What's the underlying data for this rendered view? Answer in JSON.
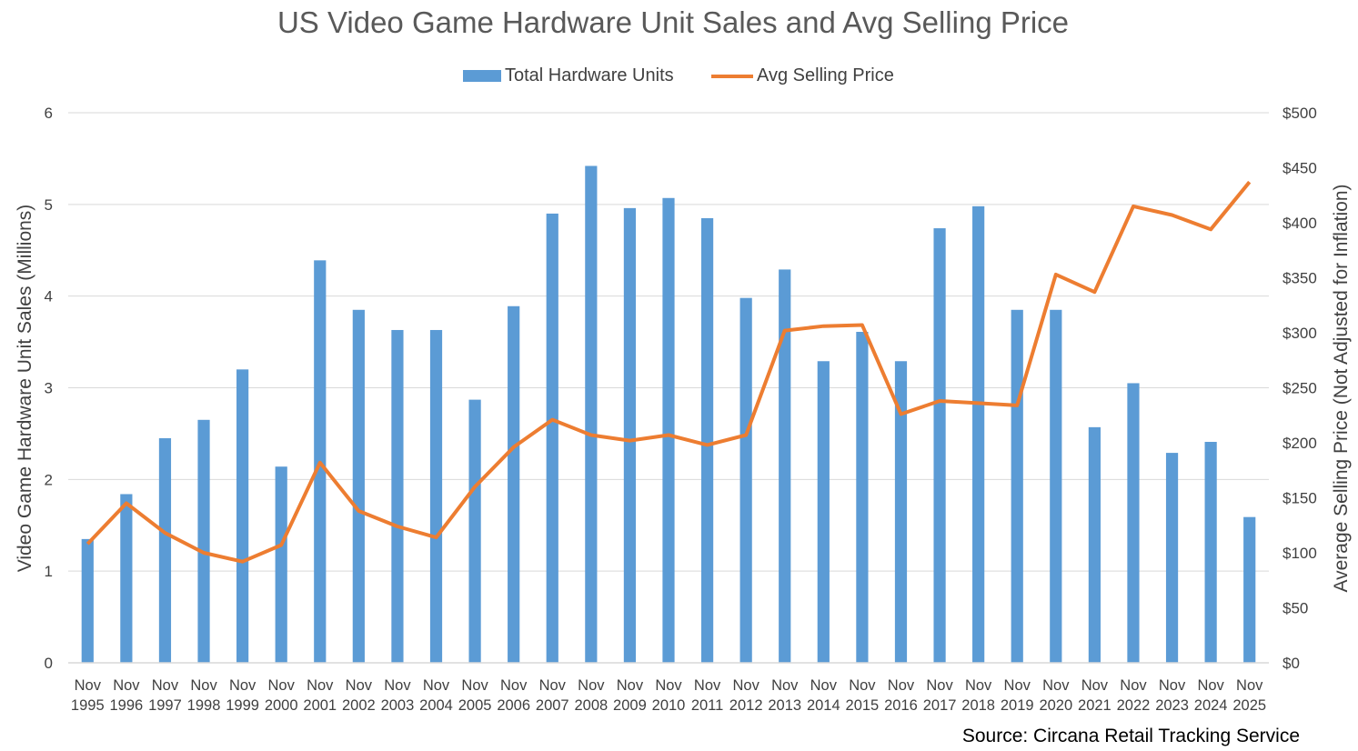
{
  "chart_data": {
    "type": "bar+line",
    "title": "US Video Game Hardware Unit Sales and Avg Selling Price",
    "ylabel": "Video Game Hardware Unit Sales (Millions)",
    "y2label": "Average Selling Price (Not Adjusted for Inflation)",
    "ylim": [
      0,
      6
    ],
    "y2lim": [
      0,
      500
    ],
    "yticks": [
      "0",
      "1",
      "2",
      "3",
      "4",
      "5",
      "6"
    ],
    "y2ticks": [
      "$0",
      "$50",
      "$100",
      "$150",
      "$200",
      "$250",
      "$300",
      "$350",
      "$400",
      "$450",
      "$500"
    ],
    "grid": true,
    "legend_position": "top-center",
    "categories": [
      "Nov 1995",
      "Nov 1996",
      "Nov 1997",
      "Nov 1998",
      "Nov 1999",
      "Nov 2000",
      "Nov 2001",
      "Nov 2002",
      "Nov 2003",
      "Nov 2004",
      "Nov 2005",
      "Nov 2006",
      "Nov 2007",
      "Nov 2008",
      "Nov 2009",
      "Nov 2010",
      "Nov 2011",
      "Nov 2012",
      "Nov 2013",
      "Nov 2014",
      "Nov 2015",
      "Nov 2016",
      "Nov 2017",
      "Nov 2018",
      "Nov 2019",
      "Nov 2020",
      "Nov 2021",
      "Nov 2022",
      "Nov 2023",
      "Nov 2024",
      "Nov 2025"
    ],
    "series": [
      {
        "name": "Total Hardware Units",
        "type": "bar",
        "axis": "left",
        "color": "#5b9bd5",
        "values": [
          1.35,
          1.84,
          2.45,
          2.65,
          3.2,
          2.14,
          4.39,
          3.85,
          3.63,
          3.63,
          2.87,
          3.89,
          4.9,
          5.42,
          4.96,
          5.07,
          4.85,
          3.98,
          4.29,
          3.29,
          3.61,
          3.29,
          4.74,
          4.98,
          3.85,
          3.85,
          2.57,
          3.05,
          2.29,
          2.41,
          1.59
        ]
      },
      {
        "name": "Avg Selling Price",
        "type": "line",
        "axis": "right",
        "color": "#ed7d31",
        "values": [
          108,
          145,
          118,
          100,
          92,
          107,
          182,
          138,
          124,
          114,
          160,
          196,
          221,
          207,
          202,
          207,
          198,
          207,
          302,
          306,
          307,
          226,
          238,
          236,
          234,
          353,
          337,
          415,
          407,
          394,
          437
        ]
      }
    ]
  },
  "source_note": "Source: Circana Retail Tracking Service"
}
